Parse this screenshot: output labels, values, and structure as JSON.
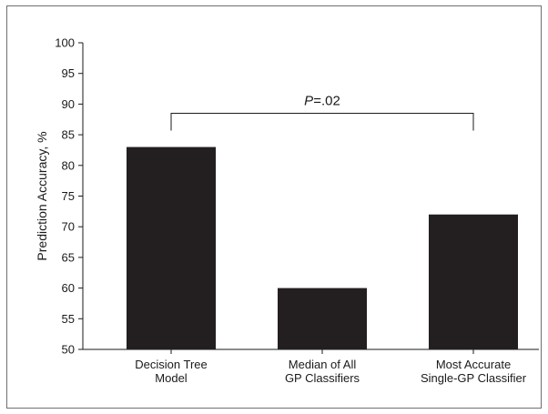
{
  "chart_data": {
    "type": "bar",
    "categories": [
      [
        "Decision Tree",
        "Model"
      ],
      [
        "Median of All",
        "GP Classifiers"
      ],
      [
        "Most Accurate",
        "Single-GP Classifier"
      ]
    ],
    "values": [
      83,
      60,
      72
    ],
    "ylabel": "Prediction Accuracy, %",
    "xlabel": "",
    "ylim": [
      50,
      100
    ],
    "yticks": [
      50,
      55,
      60,
      65,
      70,
      75,
      80,
      85,
      90,
      95,
      100
    ],
    "bar_color": "#231f20",
    "annotation": {
      "text_italic": "P",
      "text_rest": "=.02",
      "connects": [
        0,
        2
      ],
      "bracket_value": 88.5
    },
    "grid": false,
    "legend": "none"
  }
}
